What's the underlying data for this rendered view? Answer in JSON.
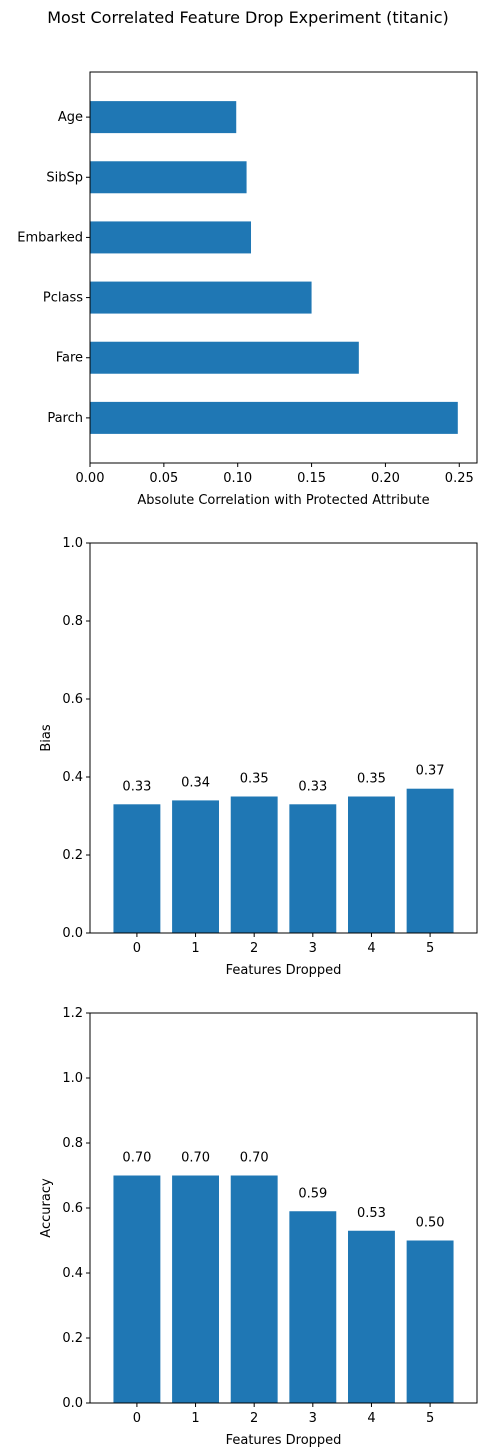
{
  "title": "Most Correlated Feature Drop Experiment (titanic)",
  "colors": {
    "bar": "#1f77b4",
    "axis": "#000000"
  },
  "chart_data": [
    {
      "type": "bar",
      "orientation": "horizontal",
      "categories": [
        "Parch",
        "Fare",
        "Pclass",
        "Embarked",
        "SibSp",
        "Age"
      ],
      "values": [
        0.249,
        0.182,
        0.15,
        0.109,
        0.106,
        0.099
      ],
      "xlabel": "Absolute Correlation with Protected Attribute",
      "ylabel": "",
      "xlim": [
        0,
        0.262
      ],
      "xticks": [
        "0.00",
        "0.05",
        "0.10",
        "0.15",
        "0.20",
        "0.25"
      ],
      "grid": false
    },
    {
      "type": "bar",
      "categories": [
        "0",
        "1",
        "2",
        "3",
        "4",
        "5"
      ],
      "values": [
        0.33,
        0.34,
        0.35,
        0.33,
        0.35,
        0.37
      ],
      "data_labels": [
        "0.33",
        "0.34",
        "0.35",
        "0.33",
        "0.35",
        "0.37"
      ],
      "xlabel": "Features Dropped",
      "ylabel": "Bias",
      "ylim": [
        0,
        1.0
      ],
      "yticks": [
        "0.0",
        "0.2",
        "0.4",
        "0.6",
        "0.8",
        "1.0"
      ],
      "grid": false
    },
    {
      "type": "bar",
      "categories": [
        "0",
        "1",
        "2",
        "3",
        "4",
        "5"
      ],
      "values": [
        0.7,
        0.7,
        0.7,
        0.59,
        0.53,
        0.5
      ],
      "data_labels": [
        "0.70",
        "0.70",
        "0.70",
        "0.59",
        "0.53",
        "0.50"
      ],
      "xlabel": "Features Dropped",
      "ylabel": "Accuracy",
      "ylim": [
        0,
        1.2
      ],
      "yticks": [
        "0.0",
        "0.2",
        "0.4",
        "0.6",
        "0.8",
        "1.0",
        "1.2"
      ],
      "grid": false
    }
  ]
}
